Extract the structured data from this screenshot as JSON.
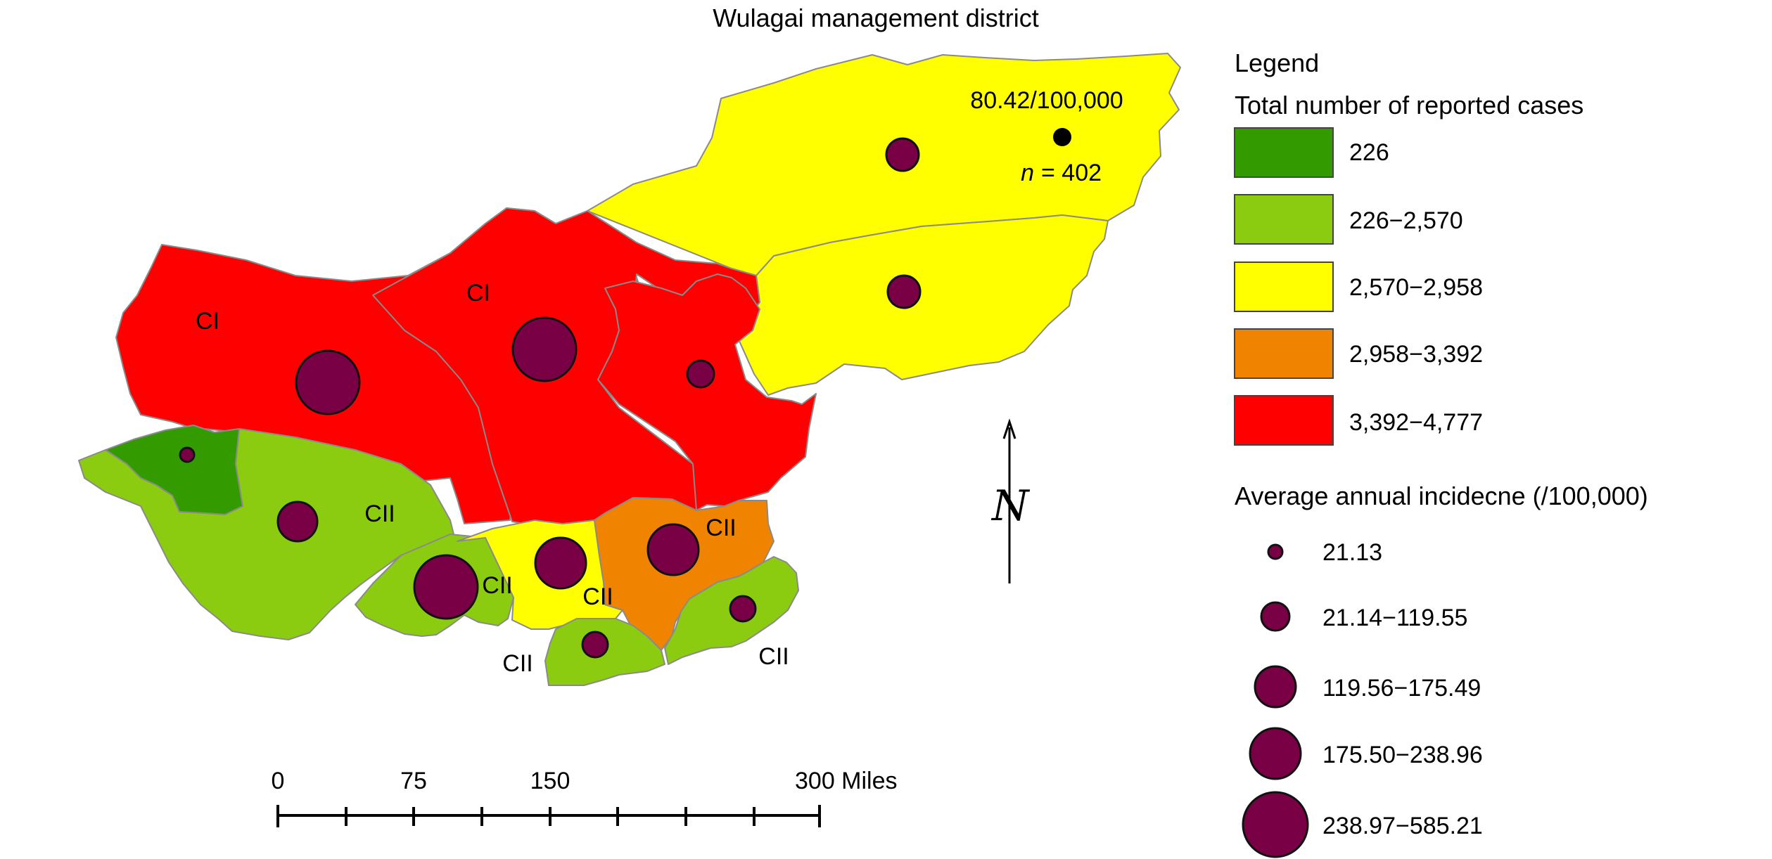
{
  "map": {
    "title": "Wulagai management district",
    "annotation": {
      "incidence": "80.42/100,000",
      "n_label": "n",
      "n_value": "= 402"
    },
    "region_labels": [
      "CI",
      "CI",
      "CII",
      "CII",
      "CII",
      "CII",
      "CII"
    ],
    "colors": {
      "dark_green": "#339b00",
      "light_green": "#8bcc11",
      "yellow": "#ffff00",
      "orange": "#f08300",
      "red": "#fe0000",
      "marker": "#7a0046"
    }
  },
  "legend": {
    "title": "Legend",
    "cases_title": "Total number of reported cases",
    "cases": [
      {
        "label": "226",
        "color": "#339b00"
      },
      {
        "label": "226−2,570",
        "color": "#8bcc11"
      },
      {
        "label": "2,570−2,958",
        "color": "#ffff00"
      },
      {
        "label": "2,958−3,392",
        "color": "#f08300"
      },
      {
        "label": "3,392−4,777",
        "color": "#fe0000"
      }
    ],
    "incidence_title": "Average annual incidecne (/100,000)",
    "incidence": [
      {
        "label": "21.13"
      },
      {
        "label": "21.14−119.55"
      },
      {
        "label": "119.56−175.49"
      },
      {
        "label": "175.50−238.96"
      },
      {
        "label": "238.97−585.21"
      }
    ]
  },
  "scale_bar": {
    "labels": [
      "0",
      "75",
      "150",
      "300 Miles"
    ]
  },
  "north_arrow": {
    "symbol": "N",
    "icon": "north-arrow-icon"
  }
}
